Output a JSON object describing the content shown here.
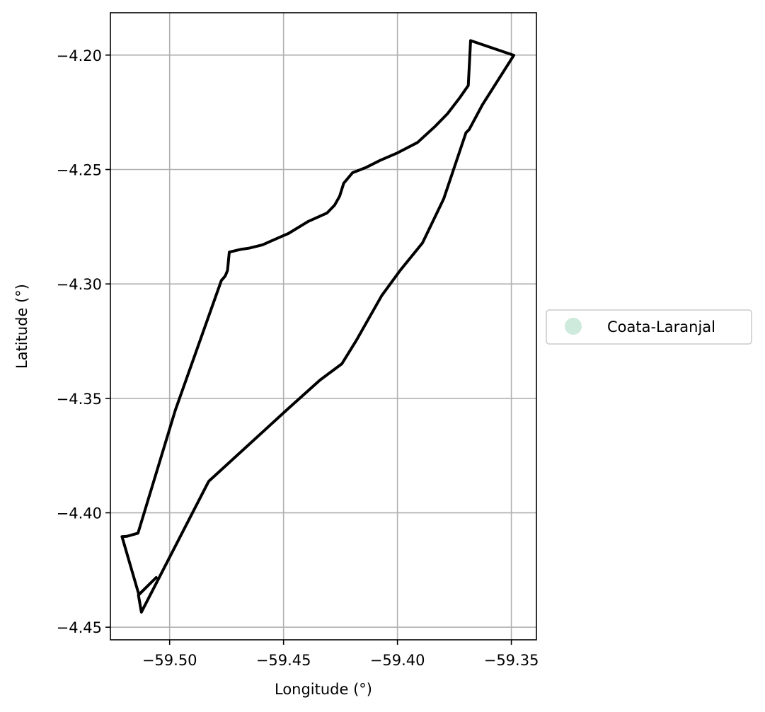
{
  "chart_data": {
    "type": "map",
    "xlabel": "Longitude (°)",
    "ylabel": "Latitude (°)",
    "xlim": [
      -59.526,
      -59.339
    ],
    "ylim": [
      -4.4555,
      -4.1815
    ],
    "xticks": [
      -59.5,
      -59.45,
      -59.4,
      -59.35
    ],
    "xtick_labels": [
      "−59.50",
      "−59.45",
      "−59.40",
      "−59.35"
    ],
    "yticks": [
      -4.2,
      -4.25,
      -4.3,
      -4.35,
      -4.4,
      -4.45
    ],
    "ytick_labels": [
      "−4.20",
      "−4.25",
      "−4.30",
      "−4.35",
      "−4.40",
      "−4.45"
    ],
    "grid": true,
    "legend": {
      "placement": "center-right-outside",
      "entries": [
        {
          "label": "Coata-Laranjal",
          "color": "#cdeadd",
          "marker": "circle"
        }
      ]
    },
    "outline_color": "#000000",
    "series": [
      {
        "name": "Coata-Laranjal",
        "type": "polygon-outline",
        "lon": [
          -59.3679,
          -59.3489,
          -59.3627,
          -59.3685,
          -59.3699,
          -59.3797,
          -59.389,
          -59.3989,
          -59.4069,
          -59.418,
          -59.4244,
          -59.434,
          -59.4483,
          -59.4828,
          -59.4832,
          -59.5124,
          -59.5137,
          -59.5059,
          -59.5135,
          -59.5209,
          -59.5188,
          -59.5139,
          -59.4975,
          -59.4773,
          -59.4756,
          -59.4746,
          -59.4738,
          -59.4689,
          -59.4652,
          -59.4592,
          -59.4542,
          -59.4498,
          -59.4479,
          -59.4392,
          -59.4309,
          -59.4276,
          -59.4254,
          -59.4236,
          -59.4197,
          -59.414,
          -59.4076,
          -59.3999,
          -59.3912,
          -59.3835,
          -59.378,
          -59.3727,
          -59.3689,
          -59.3679
        ],
        "lat": [
          -4.1937,
          -4.2001,
          -4.2217,
          -4.2325,
          -4.2339,
          -4.2628,
          -4.2821,
          -4.2942,
          -4.3051,
          -4.3246,
          -4.3349,
          -4.342,
          -4.3548,
          -4.3862,
          -4.3869,
          -4.4434,
          -4.436,
          -4.4283,
          -4.4357,
          -4.4104,
          -4.4103,
          -4.4089,
          -4.3552,
          -4.2985,
          -4.2965,
          -4.2941,
          -4.2861,
          -4.2849,
          -4.2844,
          -4.2829,
          -4.2807,
          -4.2788,
          -4.278,
          -4.2727,
          -4.269,
          -4.2656,
          -4.2617,
          -4.256,
          -4.2514,
          -4.2492,
          -4.246,
          -4.2427,
          -4.2382,
          -4.2312,
          -4.2256,
          -4.2187,
          -4.2133,
          -4.1937
        ]
      }
    ]
  }
}
